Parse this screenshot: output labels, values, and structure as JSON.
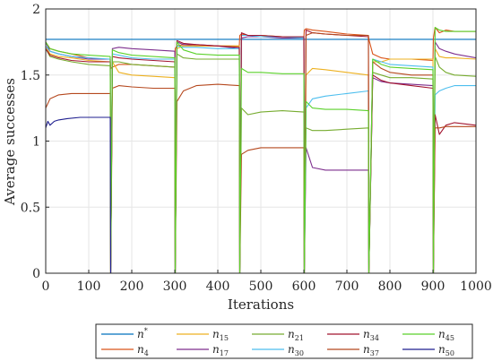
{
  "chart_data": {
    "type": "line",
    "xlabel": "Iterations",
    "ylabel": "Average successes",
    "xlim": [
      0,
      1000
    ],
    "ylim": [
      0,
      2
    ],
    "xticks": [
      0,
      100,
      200,
      300,
      400,
      500,
      600,
      700,
      800,
      900,
      1000
    ],
    "yticks": [
      0,
      0.5,
      1,
      1.5,
      2
    ],
    "grid": true,
    "legend_placement": "bottom",
    "series": [
      {
        "name": "n*",
        "base": "n",
        "sup": "*",
        "color": "#0072BD",
        "x": [
          0,
          1000
        ],
        "y": [
          1.77,
          1.77
        ]
      },
      {
        "name": "n4",
        "base": "n",
        "sub": "4",
        "color": "#D95319",
        "x": [
          0,
          10,
          30,
          60,
          100,
          130,
          150,
          151,
          155,
          170,
          200,
          250,
          300,
          301,
          305,
          320,
          350,
          400,
          450,
          451,
          455,
          470,
          500,
          550,
          600,
          601,
          605,
          620,
          650,
          700,
          750,
          751,
          760,
          780,
          800,
          850,
          900,
          901,
          905,
          915,
          930,
          950,
          1000
        ],
        "y": [
          1.75,
          1.7,
          1.68,
          1.66,
          1.63,
          1.62,
          1.62,
          1.55,
          1.56,
          1.58,
          1.58,
          1.57,
          1.56,
          1.7,
          1.72,
          1.73,
          1.72,
          1.72,
          1.72,
          1.8,
          1.81,
          1.8,
          1.8,
          1.79,
          1.79,
          1.84,
          1.85,
          1.84,
          1.83,
          1.81,
          1.8,
          1.77,
          1.66,
          1.63,
          1.62,
          1.62,
          1.61,
          1.78,
          1.86,
          1.82,
          1.84,
          1.83,
          1.83
        ]
      },
      {
        "name": "n15",
        "base": "n",
        "sub": "15",
        "color": "#EDB120",
        "x": [
          0,
          10,
          30,
          60,
          100,
          150,
          151,
          155,
          170,
          200,
          250,
          300,
          301,
          305,
          320,
          350,
          400,
          450,
          451,
          455,
          470,
          500,
          550,
          600,
          601,
          605,
          620,
          650,
          700,
          750,
          751,
          760,
          780,
          800,
          850,
          900,
          901,
          905,
          915,
          930,
          950,
          1000
        ],
        "y": [
          1.72,
          1.66,
          1.64,
          1.63,
          1.61,
          1.6,
          0,
          1.6,
          1.52,
          1.5,
          1.49,
          1.48,
          0,
          1.7,
          1.72,
          1.72,
          1.72,
          1.72,
          0,
          1.8,
          1.8,
          1.8,
          1.79,
          1.78,
          0,
          1.5,
          1.55,
          1.54,
          1.52,
          1.5,
          0,
          1.6,
          1.6,
          1.62,
          1.62,
          1.62,
          0,
          1.7,
          1.64,
          1.63,
          1.63,
          1.62
        ]
      },
      {
        "name": "n17",
        "base": "n",
        "sub": "17",
        "color": "#7E2F8E",
        "x": [
          0,
          10,
          30,
          60,
          100,
          150,
          151,
          155,
          170,
          200,
          250,
          300,
          301,
          305,
          320,
          350,
          400,
          450,
          451,
          455,
          470,
          500,
          550,
          600,
          601,
          605,
          620,
          650,
          700,
          750,
          751,
          760,
          780,
          800,
          850,
          900,
          901,
          905,
          915,
          930,
          950,
          1000
        ],
        "y": [
          1.75,
          1.68,
          1.66,
          1.64,
          1.62,
          1.62,
          0,
          1.7,
          1.71,
          1.7,
          1.69,
          1.68,
          0,
          1.75,
          1.73,
          1.73,
          1.72,
          1.7,
          0,
          1.78,
          1.79,
          1.79,
          1.78,
          1.78,
          0,
          0.95,
          0.8,
          0.78,
          0.78,
          0.78,
          0,
          1.48,
          1.45,
          1.44,
          1.43,
          1.42,
          0,
          1.75,
          1.7,
          1.68,
          1.66,
          1.63
        ]
      },
      {
        "name": "n21",
        "base": "n",
        "sub": "21",
        "color": "#77AC30",
        "x": [
          0,
          10,
          30,
          60,
          100,
          150,
          151,
          155,
          170,
          200,
          250,
          300,
          301,
          305,
          320,
          350,
          400,
          450,
          451,
          455,
          470,
          500,
          550,
          600,
          601,
          605,
          620,
          650,
          700,
          750,
          751,
          760,
          780,
          800,
          850,
          900,
          901,
          905,
          915,
          930,
          950,
          1000
        ],
        "y": [
          1.7,
          1.64,
          1.62,
          1.6,
          1.58,
          1.57,
          0,
          1.6,
          1.6,
          1.58,
          1.57,
          1.56,
          0,
          1.66,
          1.63,
          1.62,
          1.62,
          1.62,
          0,
          1.25,
          1.2,
          1.22,
          1.23,
          1.22,
          0,
          1.1,
          1.08,
          1.08,
          1.09,
          1.1,
          0,
          1.52,
          1.5,
          1.48,
          1.48,
          1.47,
          0,
          1.64,
          1.56,
          1.52,
          1.5,
          1.49
        ]
      },
      {
        "name": "n30",
        "base": "n",
        "sub": "30",
        "color": "#4DBEEE",
        "x": [
          0,
          10,
          30,
          60,
          100,
          150,
          151,
          155,
          170,
          200,
          250,
          300,
          301,
          305,
          320,
          350,
          400,
          450,
          451,
          455,
          470,
          500,
          550,
          600,
          601,
          605,
          620,
          650,
          700,
          750,
          751,
          760,
          780,
          800,
          850,
          900,
          901,
          905,
          915,
          930,
          950,
          1000
        ],
        "y": [
          1.72,
          1.68,
          1.66,
          1.64,
          1.63,
          1.62,
          0,
          1.66,
          1.65,
          1.63,
          1.62,
          1.62,
          0,
          1.72,
          1.71,
          1.71,
          1.7,
          1.7,
          0,
          1.8,
          1.8,
          1.79,
          1.79,
          1.78,
          0,
          1.25,
          1.32,
          1.34,
          1.36,
          1.38,
          0,
          1.62,
          1.6,
          1.58,
          1.57,
          1.56,
          0,
          1.35,
          1.38,
          1.4,
          1.42,
          1.42
        ]
      },
      {
        "name": "n34",
        "base": "n",
        "sub": "34",
        "color": "#A2142F",
        "x": [
          0,
          10,
          30,
          60,
          100,
          150,
          151,
          155,
          170,
          200,
          250,
          300,
          301,
          305,
          320,
          350,
          400,
          450,
          451,
          455,
          470,
          500,
          550,
          600,
          601,
          605,
          620,
          650,
          700,
          750,
          751,
          760,
          780,
          800,
          850,
          900,
          901,
          905,
          915,
          930,
          950,
          1000
        ],
        "y": [
          1.7,
          1.65,
          1.63,
          1.61,
          1.6,
          1.6,
          0,
          1.64,
          1.63,
          1.62,
          1.61,
          1.6,
          0,
          1.76,
          1.74,
          1.73,
          1.72,
          1.71,
          0,
          1.82,
          1.8,
          1.8,
          1.79,
          1.79,
          0,
          1.84,
          1.82,
          1.81,
          1.8,
          1.79,
          0,
          1.5,
          1.46,
          1.44,
          1.42,
          1.4,
          0,
          1.2,
          1.05,
          1.12,
          1.14,
          1.12
        ]
      },
      {
        "name": "n37",
        "base": "n",
        "sub": "37",
        "color": "#B5481E",
        "x": [
          0,
          10,
          30,
          60,
          100,
          150,
          151,
          155,
          170,
          200,
          250,
          300,
          301,
          305,
          320,
          350,
          400,
          450,
          451,
          455,
          470,
          500,
          550,
          600,
          601,
          605,
          620,
          650,
          700,
          750,
          751,
          760,
          780,
          800,
          850,
          900,
          901,
          905,
          915,
          930,
          950,
          1000
        ],
        "y": [
          1.25,
          1.32,
          1.35,
          1.36,
          1.36,
          1.36,
          0,
          1.4,
          1.42,
          1.41,
          1.4,
          1.4,
          0,
          1.3,
          1.38,
          1.42,
          1.43,
          1.42,
          0,
          0.9,
          0.93,
          0.95,
          0.95,
          0.95,
          0,
          1.8,
          1.82,
          1.81,
          1.8,
          1.8,
          0,
          1.6,
          1.55,
          1.52,
          1.5,
          1.5,
          0,
          1.1,
          1.1,
          1.11,
          1.11,
          1.11
        ]
      },
      {
        "name": "n45",
        "base": "n",
        "sub": "45",
        "color": "#5BD12B",
        "x": [
          0,
          10,
          30,
          60,
          100,
          150,
          151,
          155,
          170,
          200,
          250,
          300,
          301,
          305,
          320,
          350,
          400,
          450,
          451,
          455,
          470,
          500,
          550,
          600,
          601,
          605,
          620,
          650,
          700,
          750,
          751,
          760,
          780,
          800,
          850,
          900,
          901,
          905,
          915,
          930,
          950,
          1000
        ],
        "y": [
          1.75,
          1.7,
          1.68,
          1.66,
          1.65,
          1.64,
          0,
          1.69,
          1.67,
          1.65,
          1.64,
          1.63,
          0,
          1.75,
          1.69,
          1.66,
          1.65,
          1.65,
          0,
          1.55,
          1.52,
          1.52,
          1.51,
          1.51,
          0,
          1.3,
          1.25,
          1.24,
          1.24,
          1.23,
          0,
          1.62,
          1.58,
          1.56,
          1.55,
          1.54,
          0,
          1.86,
          1.84,
          1.83,
          1.83,
          1.83
        ]
      },
      {
        "name": "n50",
        "base": "n",
        "sub": "50",
        "color": "#1F1F8F",
        "x": [
          0,
          5,
          10,
          20,
          30,
          50,
          80,
          100,
          130,
          150,
          151,
          1000
        ],
        "y": [
          1.1,
          1.15,
          1.12,
          1.15,
          1.16,
          1.17,
          1.18,
          1.18,
          1.18,
          1.18,
          0,
          0
        ]
      }
    ]
  }
}
